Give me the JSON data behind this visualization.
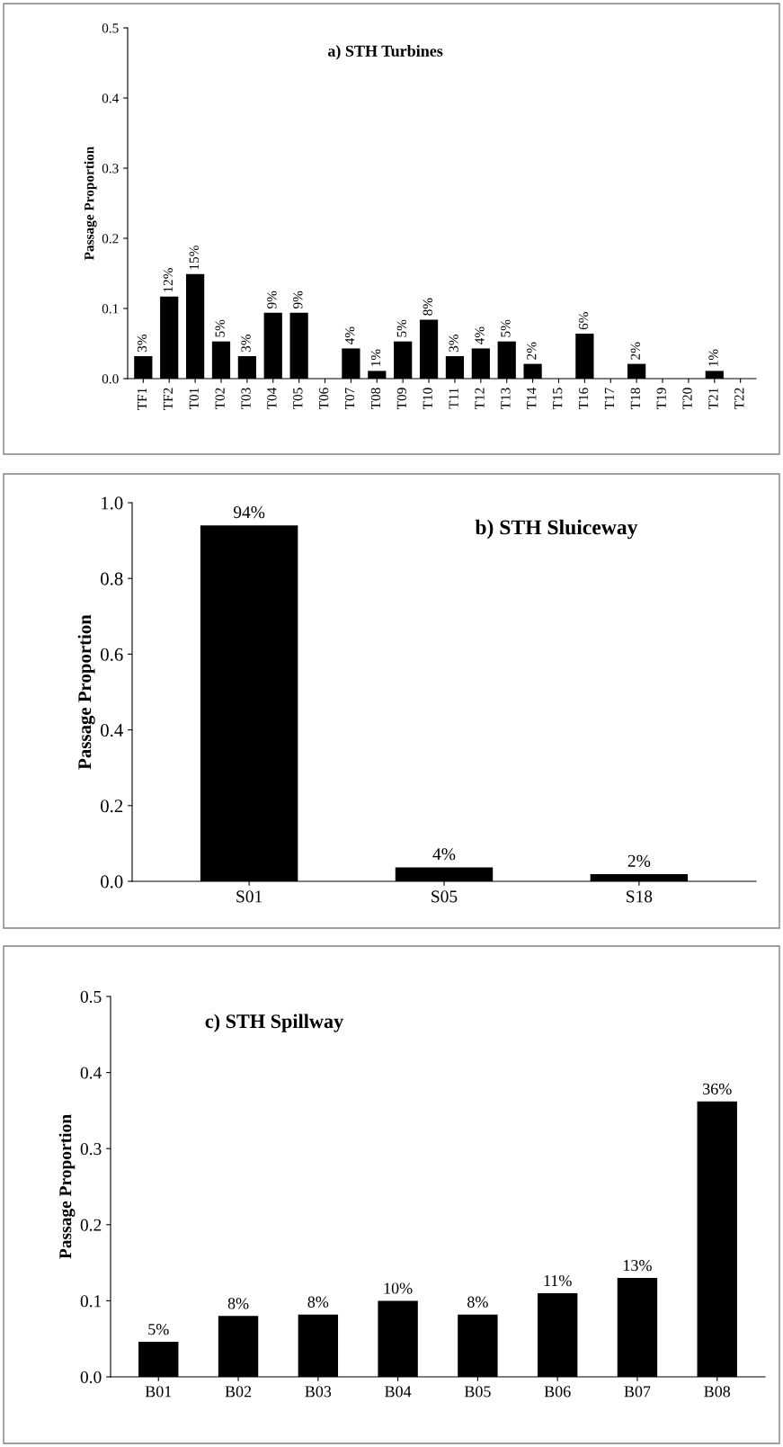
{
  "chart_data": [
    {
      "type": "bar",
      "title": "a) STH Turbines",
      "ylabel": "Passage Proportion",
      "categories": [
        "TF1",
        "TF2",
        "T01",
        "T02",
        "T03",
        "T04",
        "T05",
        "T06",
        "T07",
        "T08",
        "T09",
        "T10",
        "T11",
        "T12",
        "T13",
        "T14",
        "T15",
        "T16",
        "T17",
        "T18",
        "T19",
        "T20",
        "T21",
        "T22"
      ],
      "values": [
        0.032,
        0.117,
        0.149,
        0.053,
        0.032,
        0.094,
        0.094,
        0,
        0.043,
        0.011,
        0.053,
        0.084,
        0.032,
        0.043,
        0.053,
        0.021,
        0,
        0.064,
        0,
        0.021,
        0,
        0,
        0.011,
        0
      ],
      "value_labels": [
        "3%",
        "12%",
        "15%",
        "5%",
        "3%",
        "9%",
        "9%",
        null,
        "4%",
        "1%",
        "5%",
        "8%",
        "3%",
        "4%",
        "5%",
        "2%",
        null,
        "6%",
        null,
        "2%",
        null,
        null,
        "1%",
        null
      ],
      "color": "#000000",
      "ylim": [
        0,
        0.5
      ],
      "yticks": [
        {
          "value": 0,
          "label": "0.0"
        },
        {
          "value": 0.1,
          "label": "0.1"
        },
        {
          "value": 0.2,
          "label": "0.2"
        },
        {
          "value": 0.3,
          "label": "0.3"
        },
        {
          "value": 0.4,
          "label": "0.4"
        },
        {
          "value": 0.5,
          "label": "0.5"
        }
      ],
      "grid": false
    },
    {
      "type": "bar",
      "title": "b) STH Sluiceway",
      "ylabel": "Passage Proportion",
      "categories": [
        "S01",
        "S05",
        "S18"
      ],
      "values": [
        0.94,
        0.037,
        0.019
      ],
      "value_labels": [
        "94%",
        "4%",
        "2%"
      ],
      "color": "#000000",
      "ylim": [
        0,
        1.0
      ],
      "yticks": [
        {
          "value": 0,
          "label": "0.0"
        },
        {
          "value": 0.2,
          "label": "0.2"
        },
        {
          "value": 0.4,
          "label": "0.4"
        },
        {
          "value": 0.6,
          "label": "0.6"
        },
        {
          "value": 0.8,
          "label": "0.8"
        },
        {
          "value": 1.0,
          "label": "1.0"
        }
      ],
      "grid": false
    },
    {
      "type": "bar",
      "title": "c) STH Spillway",
      "ylabel": "Passage Proportion",
      "categories": [
        "B01",
        "B02",
        "B03",
        "B04",
        "B05",
        "B06",
        "B07",
        "B08"
      ],
      "values": [
        0.046,
        0.08,
        0.082,
        0.1,
        0.082,
        0.11,
        0.13,
        0.362
      ],
      "value_labels": [
        "5%",
        "8%",
        "8%",
        "10%",
        "8%",
        "11%",
        "13%",
        "36%"
      ],
      "color": "#000000",
      "ylim": [
        0,
        0.5
      ],
      "yticks": [
        {
          "value": 0,
          "label": "0.0"
        },
        {
          "value": 0.1,
          "label": "0.1"
        },
        {
          "value": 0.2,
          "label": "0.2"
        },
        {
          "value": 0.3,
          "label": "0.3"
        },
        {
          "value": 0.4,
          "label": "0.4"
        },
        {
          "value": 0.5,
          "label": "0.5"
        }
      ],
      "grid": false
    }
  ]
}
